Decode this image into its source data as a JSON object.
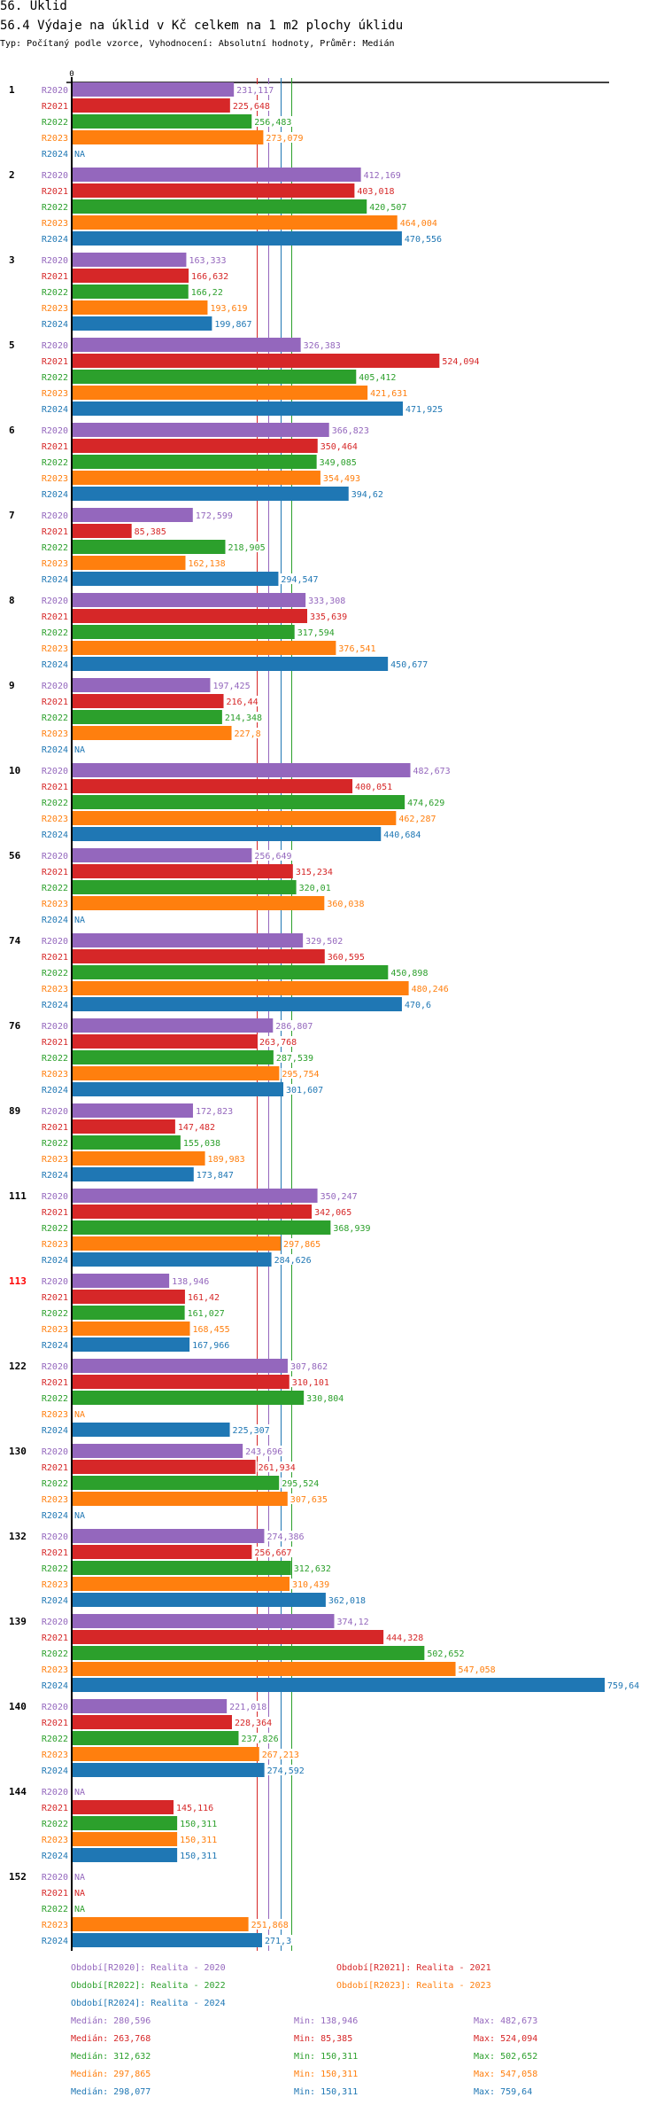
{
  "header": {
    "section_title": "56. Úklid",
    "chart_title": "56.4 Výdaje na úklid v Kč celkem na 1 m2 plochy úklidu",
    "subtitle": "Typ: Počítaný podle vzorce, Vyhodnocení: Absolutní hodnoty, Průměr: Medián"
  },
  "colors": {
    "R2020": "#9467bd",
    "R2021": "#d62728",
    "R2022": "#2ca02c",
    "R2023": "#ff7f0e",
    "R2024": "#1f77b4",
    "axis": "#000000",
    "highlight_group": "#ff0000"
  },
  "chart_data": {
    "type": "bar",
    "orientation": "horizontal",
    "title": "56.4 Výdaje na úklid v Kč celkem na 1 m2 plochy úklidu",
    "xlabel": "",
    "ylabel": "",
    "x_tick_labels": [
      "0"
    ],
    "xlim": [
      0,
      759.64
    ],
    "grid": false,
    "na_label": "NA",
    "decimal_separator": ",",
    "series_names": [
      "R2020",
      "R2021",
      "R2022",
      "R2023",
      "R2024"
    ],
    "categories": [
      "1",
      "2",
      "3",
      "5",
      "6",
      "7",
      "8",
      "9",
      "10",
      "56",
      "74",
      "76",
      "89",
      "111",
      "113",
      "122",
      "130",
      "132",
      "139",
      "140",
      "144",
      "152"
    ],
    "highlighted_categories": [
      "113"
    ],
    "series": [
      {
        "name": "R2020",
        "values": [
          231.117,
          412.169,
          163.333,
          326.383,
          366.823,
          172.599,
          333.308,
          197.425,
          482.673,
          256.649,
          329.502,
          286.807,
          172.823,
          350.247,
          138.946,
          307.862,
          243.696,
          274.386,
          374.12,
          221.018,
          null,
          null
        ]
      },
      {
        "name": "R2021",
        "values": [
          225.648,
          403.018,
          166.632,
          524.094,
          350.464,
          85.385,
          335.639,
          216.44,
          400.051,
          315.234,
          360.595,
          263.768,
          147.482,
          342.065,
          161.42,
          310.101,
          261.934,
          256.667,
          444.328,
          228.364,
          145.116,
          null
        ]
      },
      {
        "name": "R2022",
        "values": [
          256.483,
          420.507,
          166.22,
          405.412,
          349.085,
          218.905,
          317.594,
          214.348,
          474.629,
          320.01,
          450.898,
          287.539,
          155.038,
          368.939,
          161.027,
          330.804,
          295.524,
          312.632,
          502.652,
          237.826,
          150.311,
          null
        ]
      },
      {
        "name": "R2023",
        "values": [
          273.079,
          464.004,
          193.619,
          421.631,
          354.493,
          162.138,
          376.541,
          227.8,
          462.287,
          360.038,
          480.246,
          295.754,
          189.983,
          297.865,
          168.455,
          null,
          307.635,
          310.439,
          547.058,
          267.213,
          150.311,
          251.868
        ]
      },
      {
        "name": "R2024",
        "values": [
          null,
          470.556,
          199.867,
          471.925,
          394.62,
          294.547,
          450.677,
          null,
          440.684,
          null,
          470.6,
          301.607,
          173.847,
          284.626,
          167.966,
          225.307,
          null,
          362.018,
          759.64,
          274.592,
          150.311,
          271.3
        ]
      }
    ],
    "median_lines": [
      {
        "series": "R2021",
        "value": 263.768
      },
      {
        "series": "R2020",
        "value": 280.596
      },
      {
        "series": "R2023",
        "value": 297.865
      },
      {
        "series": "R2024",
        "value": 298.077
      },
      {
        "series": "R2022",
        "value": 312.632
      }
    ],
    "legend": [
      {
        "series": "R2020",
        "text": "Období[R2020]: Realita - 2020"
      },
      {
        "series": "R2021",
        "text": "Období[R2021]: Realita - 2021"
      },
      {
        "series": "R2022",
        "text": "Období[R2022]: Realita - 2022"
      },
      {
        "series": "R2023",
        "text": "Období[R2023]: Realita - 2023"
      },
      {
        "series": "R2024",
        "text": "Období[R2024]: Realita - 2024"
      }
    ],
    "legend_position": "bottom",
    "stats": [
      {
        "series": "R2020",
        "median": "Medián: 280,596",
        "min": "Min: 138,946",
        "max": "Max: 482,673"
      },
      {
        "series": "R2021",
        "median": "Medián: 263,768",
        "min": "Min: 85,385",
        "max": "Max: 524,094"
      },
      {
        "series": "R2022",
        "median": "Medián: 312,632",
        "min": "Min: 150,311",
        "max": "Max: 502,652"
      },
      {
        "series": "R2023",
        "median": "Medián: 297,865",
        "min": "Min: 150,311",
        "max": "Max: 547,058"
      },
      {
        "series": "R2024",
        "median": "Medián: 298,077",
        "min": "Min: 150,311",
        "max": "Max: 759,64"
      }
    ]
  }
}
